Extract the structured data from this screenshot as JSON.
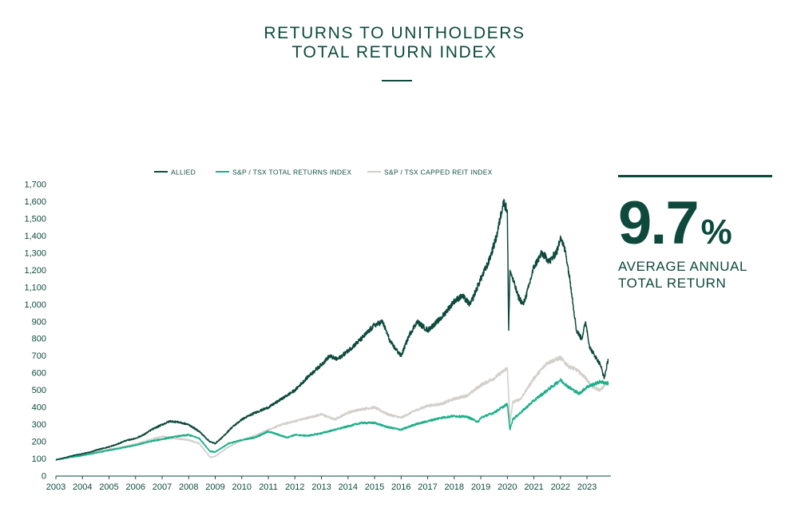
{
  "header": {
    "title_line1": "RETURNS TO UNITHOLDERS",
    "title_line2": "TOTAL RETURN INDEX"
  },
  "stat": {
    "value": "9.7",
    "suffix": "%",
    "label_line1": "AVERAGE ANNUAL",
    "label_line2": "TOTAL RETURN"
  },
  "chart_data": {
    "type": "line",
    "ylim": [
      0,
      1700
    ],
    "yticks": [
      0,
      100,
      200,
      300,
      400,
      500,
      600,
      700,
      800,
      900,
      1000,
      1100,
      1200,
      1300,
      1400,
      1500,
      1600,
      1700
    ],
    "ytick_labels": [
      "0",
      "100",
      "200",
      "300",
      "400",
      "500",
      "600",
      "700",
      "800",
      "900",
      "1,000",
      "1,100",
      "1,200",
      "1,300",
      "1,400",
      "1,500",
      "1,600",
      "1,700"
    ],
    "xlim": [
      2003,
      2023.9
    ],
    "xticks": [
      2003,
      2004,
      2005,
      2006,
      2007,
      2008,
      2009,
      2010,
      2011,
      2012,
      2013,
      2014,
      2015,
      2016,
      2017,
      2018,
      2019,
      2020,
      2021,
      2022,
      2023
    ],
    "xtick_labels": [
      "2003",
      "2004",
      "2005",
      "2006",
      "2007",
      "2008",
      "2009",
      "2010",
      "2011",
      "2012",
      "2013",
      "2014",
      "2015",
      "2016",
      "2017",
      "2018",
      "2019",
      "2020",
      "2021",
      "2022",
      "2023"
    ],
    "legend_position": "top",
    "grid": false,
    "series": [
      {
        "name": "ALLIED",
        "color": "#0d4a3c",
        "x": [
          2003.0,
          2003.3,
          2003.6,
          2004.0,
          2004.3,
          2004.6,
          2005.0,
          2005.3,
          2005.6,
          2006.0,
          2006.3,
          2006.6,
          2007.0,
          2007.3,
          2007.6,
          2008.0,
          2008.4,
          2008.8,
          2009.0,
          2009.3,
          2009.6,
          2010.0,
          2010.5,
          2011.0,
          2011.5,
          2012.0,
          2012.5,
          2013.0,
          2013.3,
          2013.6,
          2014.0,
          2014.5,
          2015.0,
          2015.3,
          2015.6,
          2016.0,
          2016.3,
          2016.6,
          2017.0,
          2017.5,
          2018.0,
          2018.3,
          2018.6,
          2019.0,
          2019.3,
          2019.6,
          2019.85,
          2020.0,
          2020.05,
          2020.1,
          2020.2,
          2020.4,
          2020.6,
          2020.8,
          2021.0,
          2021.3,
          2021.6,
          2021.9,
          2022.0,
          2022.2,
          2022.4,
          2022.6,
          2022.8,
          2022.95,
          2023.1,
          2023.3,
          2023.5,
          2023.65,
          2023.8
        ],
        "values": [
          95,
          105,
          118,
          130,
          140,
          155,
          170,
          185,
          205,
          220,
          240,
          270,
          300,
          320,
          315,
          300,
          260,
          200,
          190,
          230,
          280,
          330,
          370,
          400,
          450,
          500,
          580,
          650,
          700,
          680,
          730,
          800,
          880,
          900,
          780,
          700,
          820,
          900,
          850,
          920,
          1020,
          1050,
          1000,
          1150,
          1250,
          1400,
          1600,
          1550,
          850,
          1200,
          1150,
          1050,
          1000,
          1100,
          1220,
          1300,
          1250,
          1320,
          1400,
          1300,
          1100,
          850,
          800,
          900,
          750,
          700,
          650,
          570,
          680
        ]
      },
      {
        "name": "S&P / TSX TOTAL RETURNS INDEX",
        "color": "#1fb08a",
        "x": [
          2003.0,
          2003.5,
          2004.0,
          2004.5,
          2005.0,
          2005.5,
          2006.0,
          2006.5,
          2007.0,
          2007.5,
          2008.0,
          2008.4,
          2008.8,
          2009.0,
          2009.5,
          2010.0,
          2010.5,
          2011.0,
          2011.3,
          2011.7,
          2012.0,
          2012.5,
          2013.0,
          2013.5,
          2014.0,
          2014.5,
          2015.0,
          2015.5,
          2016.0,
          2016.5,
          2017.0,
          2017.5,
          2018.0,
          2018.5,
          2018.9,
          2019.0,
          2019.5,
          2020.0,
          2020.1,
          2020.2,
          2020.5,
          2021.0,
          2021.5,
          2022.0,
          2022.3,
          2022.7,
          2023.0,
          2023.5,
          2023.8
        ],
        "values": [
          95,
          108,
          120,
          135,
          150,
          165,
          180,
          200,
          215,
          230,
          240,
          220,
          145,
          140,
          190,
          210,
          225,
          260,
          245,
          225,
          240,
          235,
          250,
          270,
          290,
          310,
          310,
          285,
          270,
          300,
          320,
          340,
          350,
          345,
          315,
          340,
          370,
          420,
          270,
          330,
          370,
          440,
          500,
          560,
          520,
          480,
          520,
          550,
          540
        ]
      },
      {
        "name": "S&P / TSX CAPPED REIT INDEX",
        "color": "#d3d0cc",
        "x": [
          2003.0,
          2003.5,
          2004.0,
          2004.5,
          2005.0,
          2005.5,
          2006.0,
          2006.5,
          2007.0,
          2007.5,
          2008.0,
          2008.4,
          2008.8,
          2009.0,
          2009.5,
          2010.0,
          2010.5,
          2011.0,
          2011.5,
          2012.0,
          2012.5,
          2013.0,
          2013.5,
          2014.0,
          2014.5,
          2015.0,
          2015.5,
          2016.0,
          2016.5,
          2017.0,
          2017.5,
          2018.0,
          2018.5,
          2019.0,
          2019.5,
          2020.0,
          2020.1,
          2020.2,
          2020.5,
          2021.0,
          2021.5,
          2022.0,
          2022.3,
          2022.6,
          2022.9,
          2023.2,
          2023.5,
          2023.8
        ],
        "values": [
          95,
          110,
          125,
          140,
          155,
          170,
          185,
          210,
          230,
          220,
          210,
          190,
          110,
          115,
          170,
          210,
          235,
          270,
          300,
          320,
          340,
          360,
          330,
          370,
          390,
          400,
          360,
          340,
          380,
          410,
          420,
          450,
          470,
          530,
          570,
          630,
          310,
          430,
          450,
          570,
          660,
          690,
          640,
          620,
          580,
          520,
          500,
          550
        ]
      }
    ]
  }
}
